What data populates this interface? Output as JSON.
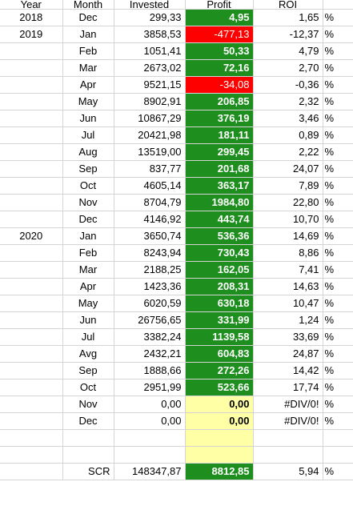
{
  "headers": {
    "year": "Year",
    "month": "Month",
    "invested": "Invested",
    "profit": "Profit",
    "roi": "ROI"
  },
  "rows": [
    {
      "year": "2018",
      "month": "Dec",
      "invested": "299,33",
      "profit": "4,95",
      "roi": "1,65",
      "pct": "%",
      "status": "pos"
    },
    {
      "year": "2019",
      "month": "Jan",
      "invested": "3858,53",
      "profit": "-477,13",
      "roi": "-12,37",
      "pct": "%",
      "status": "neg"
    },
    {
      "year": "",
      "month": "Feb",
      "invested": "1051,41",
      "profit": "50,33",
      "roi": "4,79",
      "pct": "%",
      "status": "pos"
    },
    {
      "year": "",
      "month": "Mar",
      "invested": "2673,02",
      "profit": "72,16",
      "roi": "2,70",
      "pct": "%",
      "status": "pos"
    },
    {
      "year": "",
      "month": "Apr",
      "invested": "9521,15",
      "profit": "-34,08",
      "roi": "-0,36",
      "pct": "%",
      "status": "neg"
    },
    {
      "year": "",
      "month": "May",
      "invested": "8902,91",
      "profit": "206,85",
      "roi": "2,32",
      "pct": "%",
      "status": "pos"
    },
    {
      "year": "",
      "month": "Jun",
      "invested": "10867,29",
      "profit": "376,19",
      "roi": "3,46",
      "pct": "%",
      "status": "pos"
    },
    {
      "year": "",
      "month": "Jul",
      "invested": "20421,98",
      "profit": "181,11",
      "roi": "0,89",
      "pct": "%",
      "status": "pos"
    },
    {
      "year": "",
      "month": "Aug",
      "invested": "13519,00",
      "profit": "299,45",
      "roi": "2,22",
      "pct": "%",
      "status": "pos"
    },
    {
      "year": "",
      "month": "Sep",
      "invested": "837,77",
      "profit": "201,68",
      "roi": "24,07",
      "pct": "%",
      "status": "pos"
    },
    {
      "year": "",
      "month": "Oct",
      "invested": "4605,14",
      "profit": "363,17",
      "roi": "7,89",
      "pct": "%",
      "status": "pos"
    },
    {
      "year": "",
      "month": "Nov",
      "invested": "8704,79",
      "profit": "1984,80",
      "roi": "22,80",
      "pct": "%",
      "status": "pos"
    },
    {
      "year": "",
      "month": "Dec",
      "invested": "4146,92",
      "profit": "443,74",
      "roi": "10,70",
      "pct": "%",
      "status": "pos"
    },
    {
      "year": "2020",
      "month": "Jan",
      "invested": "3650,74",
      "profit": "536,36",
      "roi": "14,69",
      "pct": "%",
      "status": "pos"
    },
    {
      "year": "",
      "month": "Feb",
      "invested": "8243,94",
      "profit": "730,43",
      "roi": "8,86",
      "pct": "%",
      "status": "pos"
    },
    {
      "year": "",
      "month": "Mar",
      "invested": "2188,25",
      "profit": "162,05",
      "roi": "7,41",
      "pct": "%",
      "status": "pos"
    },
    {
      "year": "",
      "month": "Apr",
      "invested": "1423,36",
      "profit": "208,31",
      "roi": "14,63",
      "pct": "%",
      "status": "pos"
    },
    {
      "year": "",
      "month": "May",
      "invested": "6020,59",
      "profit": "630,18",
      "roi": "10,47",
      "pct": "%",
      "status": "pos"
    },
    {
      "year": "",
      "month": "Jun",
      "invested": "26756,65",
      "profit": "331,99",
      "roi": "1,24",
      "pct": "%",
      "status": "pos"
    },
    {
      "year": "",
      "month": "Jul",
      "invested": "3382,24",
      "profit": "1139,58",
      "roi": "33,69",
      "pct": "%",
      "status": "pos"
    },
    {
      "year": "",
      "month": "Avg",
      "invested": "2432,21",
      "profit": "604,83",
      "roi": "24,87",
      "pct": "%",
      "status": "pos"
    },
    {
      "year": "",
      "month": "Sep",
      "invested": "1888,66",
      "profit": "272,26",
      "roi": "14,42",
      "pct": "%",
      "status": "pos"
    },
    {
      "year": "",
      "month": "Oct",
      "invested": "2951,99",
      "profit": "523,66",
      "roi": "17,74",
      "pct": "%",
      "status": "pos"
    },
    {
      "year": "",
      "month": "Nov",
      "invested": "0,00",
      "profit": "0,00",
      "roi": "#DIV/0!",
      "pct": "%",
      "status": "zero"
    },
    {
      "year": "",
      "month": "Dec",
      "invested": "0,00",
      "profit": "0,00",
      "roi": "#DIV/0!",
      "pct": "%",
      "status": "zero"
    }
  ],
  "summary": {
    "label": "SCR",
    "invested": "148347,87",
    "profit": "8812,85",
    "roi": "5,94",
    "pct": "%"
  },
  "colors": {
    "positive": "#1e8f1e",
    "negative": "#ff0000",
    "zero": "#ffffa6",
    "grid": "#d4d4d4"
  }
}
